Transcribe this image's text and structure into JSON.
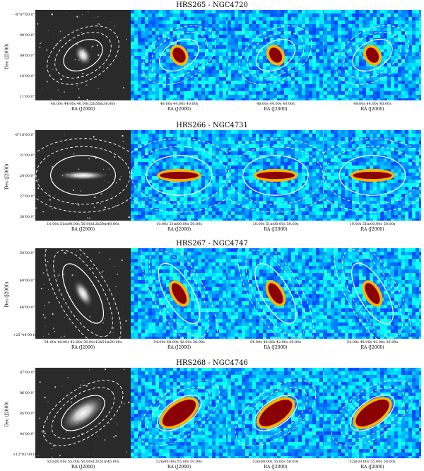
{
  "figure": {
    "rows": [
      {
        "title": "HRS265 - NGC4720",
        "dec_ticks": [
          "-4°07'00.0\"",
          "08'00.0\"",
          "09'00.0\"",
          "10'00.0\"",
          "11'00.0\""
        ],
        "ra_ticks_optical": "48.00s     44.00s    40.00s12h50m36.00s",
        "ra_ticks_map": "48.00s    44.00s    40.00s",
        "dec_axis": "Dec (J2000)",
        "ra_axis": "RA (J2000)",
        "ellipse_angle": -30,
        "ellipse_rx": 0.22,
        "ellipse_ry": 0.15,
        "core_rx": 0.06,
        "core_ry": 0.09
      },
      {
        "title": "HRS266 - NGC4731",
        "dec_ticks": [
          "-6°18'00.0\"",
          "21'00.0\"",
          "24'00.0\"",
          "27'00.0\"",
          "30'00.0\""
        ],
        "ra_ticks_optical": "10.00s 51m00.00s 50.00s12h50m40.00s",
        "ra_ticks_map": "10.00s 51m00.00s 50.00s",
        "dec_axis": "Dec (J2000)",
        "ra_axis": "RA (J2000)",
        "ellipse_angle": 0,
        "ellipse_rx": 0.34,
        "ellipse_ry": 0.22,
        "core_rx": 0.2,
        "core_ry": 0.04
      },
      {
        "title": "HRS267 - NGC4747",
        "dec_ticks": [
          "50'00.0\"",
          "48'00.0\"",
          "46'00.0\"",
          "+25°44'00.0\""
        ],
        "ra_ticks_optical": "54.00s 48.00s 42.00s 36.00s12h51m30.00s",
        "ra_ticks_map": "54.00s 48.00s 42.00s 36.00s",
        "dec_axis": "Dec (J2000)",
        "ra_axis": "RA (J2000)",
        "ellipse_angle": 60,
        "ellipse_rx": 0.35,
        "ellipse_ry": 0.15,
        "core_rx": 0.12,
        "core_ry": 0.06
      },
      {
        "title": "HRS268 - NGC4746",
        "dec_ticks": [
          "07'00.0\"",
          "06'00.0\"",
          "05'00.0\"",
          "04'00.0\"",
          "+12°03'00.0\""
        ],
        "ra_ticks_optical": "52m00.00s 55.00s  50.00s12h51m45.00s",
        "ra_ticks_map": "52m00.00s  55.00s  50.00s",
        "dec_axis": "Dec (J2000)",
        "ra_axis": "RA (J2000)",
        "ellipse_angle": -35,
        "ellipse_rx": 0.26,
        "ellipse_ry": 0.14,
        "core_rx": 0.2,
        "core_ry": 0.1
      }
    ]
  }
}
